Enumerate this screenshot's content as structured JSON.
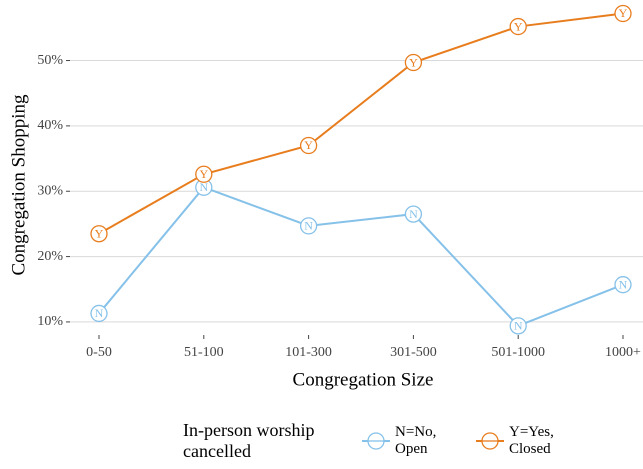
{
  "chart_data": {
    "type": "line",
    "x_label": "Congregation Size",
    "y_label": "Congregation Shopping",
    "categories": [
      "0-50",
      "51-100",
      "101-300",
      "301-500",
      "501-1000",
      "1000+"
    ],
    "series": [
      {
        "name": "N=No, Open",
        "marker": "N",
        "color": "#85c1e9",
        "values": [
          11.3,
          30.6,
          24.7,
          26.5,
          9.4,
          15.7
        ]
      },
      {
        "name": "Y=Yes, Closed",
        "marker": "Y",
        "color": "#e87d1e",
        "values": [
          23.5,
          32.6,
          37,
          49.7,
          55.2,
          57.2
        ]
      }
    ],
    "ylim": [
      8,
      58.5
    ],
    "yticks": [
      {
        "value": 10,
        "label": "10%"
      },
      {
        "value": 20,
        "label": "20%"
      },
      {
        "value": 30,
        "label": "30%"
      },
      {
        "value": 40,
        "label": "40%"
      },
      {
        "value": 50,
        "label": "50%"
      }
    ],
    "grid": true,
    "legend_title": "In-person worship cancelled",
    "legend_position": "bottom"
  }
}
